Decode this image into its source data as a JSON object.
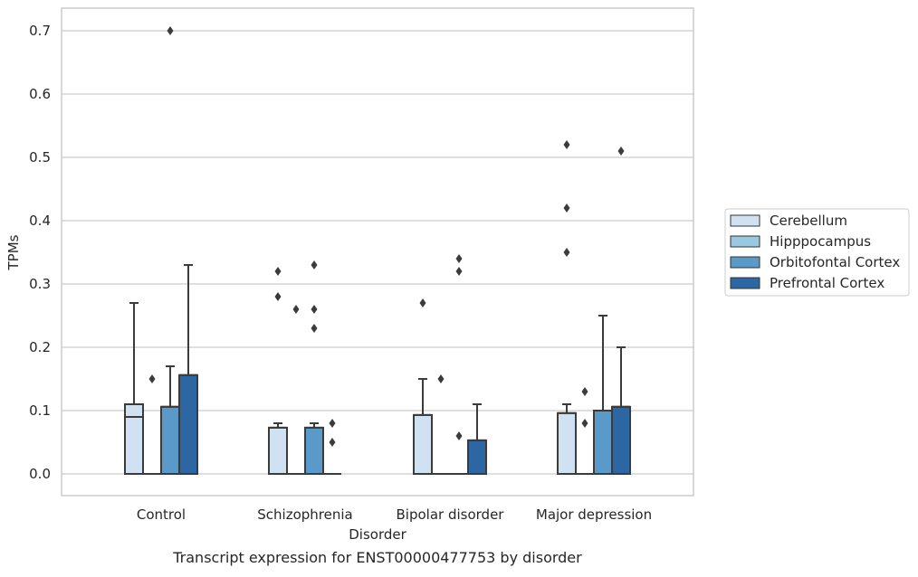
{
  "chart_data": {
    "type": "box",
    "title": "",
    "caption": "Transcript expression for ENST00000477753 by disorder",
    "xlabel": "Disorder",
    "ylabel": "TPMs",
    "ylim": [
      -0.035,
      0.735
    ],
    "yticks": [
      0.0,
      0.1,
      0.2,
      0.3,
      0.4,
      0.5,
      0.6,
      0.7
    ],
    "ytick_labels": [
      "0.0",
      "0.1",
      "0.2",
      "0.3",
      "0.4",
      "0.5",
      "0.6",
      "0.7"
    ],
    "grid": "horizontal",
    "legend_position": "right",
    "categories": [
      "Control",
      "Schizophrenia",
      "Bipolar disorder",
      "Major depression"
    ],
    "series": [
      {
        "name": "Cerebellum",
        "color": "#d0e1f2",
        "boxes": [
          {
            "q1": 0.0,
            "median": 0.09,
            "q3": 0.11,
            "whisker_low": 0.0,
            "whisker_high": 0.27,
            "outliers": []
          },
          {
            "q1": 0.0,
            "median": 0.073,
            "q3": 0.073,
            "whisker_low": 0.0,
            "whisker_high": 0.08,
            "outliers": [
              0.32,
              0.28
            ]
          },
          {
            "q1": 0.0,
            "median": 0.093,
            "q3": 0.093,
            "whisker_low": 0.0,
            "whisker_high": 0.15,
            "outliers": [
              0.27
            ]
          },
          {
            "q1": 0.0,
            "median": 0.096,
            "q3": 0.096,
            "whisker_low": 0.0,
            "whisker_high": 0.11,
            "outliers": [
              0.52,
              0.42,
              0.35
            ]
          }
        ]
      },
      {
        "name": "Hipppocampus",
        "color": "#9ac8e0",
        "boxes": [
          {
            "q1": 0.0,
            "median": 0.0,
            "q3": 0.0,
            "whisker_low": 0.0,
            "whisker_high": 0.0,
            "outliers": [
              0.15
            ]
          },
          {
            "q1": 0.0,
            "median": 0.0,
            "q3": 0.0,
            "whisker_low": 0.0,
            "whisker_high": 0.0,
            "outliers": [
              0.26
            ]
          },
          {
            "q1": 0.0,
            "median": 0.0,
            "q3": 0.0,
            "whisker_low": 0.0,
            "whisker_high": 0.0,
            "outliers": [
              0.15
            ]
          },
          {
            "q1": 0.0,
            "median": 0.0,
            "q3": 0.0,
            "whisker_low": 0.0,
            "whisker_high": 0.0,
            "outliers": [
              0.13,
              0.08
            ]
          }
        ]
      },
      {
        "name": "Orbitofontal Cortex",
        "color": "#5a9ac9",
        "boxes": [
          {
            "q1": 0.0,
            "median": 0.106,
            "q3": 0.106,
            "whisker_low": 0.0,
            "whisker_high": 0.17,
            "outliers": [
              0.7
            ]
          },
          {
            "q1": 0.0,
            "median": 0.073,
            "q3": 0.073,
            "whisker_low": 0.0,
            "whisker_high": 0.08,
            "outliers": [
              0.33,
              0.26,
              0.23
            ]
          },
          {
            "q1": 0.0,
            "median": 0.0,
            "q3": 0.0,
            "whisker_low": 0.0,
            "whisker_high": 0.0,
            "outliers": [
              0.34,
              0.32,
              0.06
            ]
          },
          {
            "q1": 0.0,
            "median": 0.1,
            "q3": 0.1,
            "whisker_low": 0.0,
            "whisker_high": 0.25,
            "outliers": []
          }
        ]
      },
      {
        "name": "Prefrontal Cortex",
        "color": "#2c67a4",
        "boxes": [
          {
            "q1": 0.0,
            "median": 0.156,
            "q3": 0.156,
            "whisker_low": 0.0,
            "whisker_high": 0.33,
            "outliers": []
          },
          {
            "q1": 0.0,
            "median": 0.0,
            "q3": 0.0,
            "whisker_low": 0.0,
            "whisker_high": 0.0,
            "outliers": [
              0.08,
              0.05
            ]
          },
          {
            "q1": 0.0,
            "median": 0.053,
            "q3": 0.053,
            "whisker_low": 0.0,
            "whisker_high": 0.11,
            "outliers": []
          },
          {
            "q1": 0.0,
            "median": 0.106,
            "q3": 0.106,
            "whisker_low": 0.0,
            "whisker_high": 0.2,
            "outliers": [
              0.51
            ]
          }
        ]
      }
    ]
  }
}
